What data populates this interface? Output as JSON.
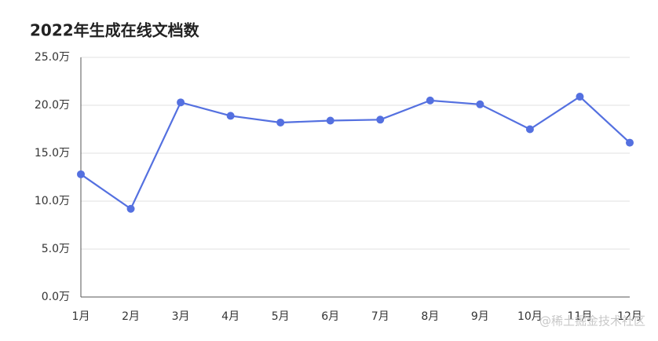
{
  "chart_data": {
    "type": "line",
    "title": "2022年生成在线文档数",
    "categories": [
      "1月",
      "2月",
      "3月",
      "4月",
      "5月",
      "6月",
      "7月",
      "8月",
      "9月",
      "10月",
      "11月",
      "12月"
    ],
    "series": [
      {
        "name": "文档数",
        "color": "#5470e0",
        "values": [
          12.8,
          9.2,
          20.3,
          18.9,
          18.2,
          18.4,
          18.5,
          20.5,
          20.1,
          17.5,
          20.9,
          16.1
        ]
      }
    ],
    "ylim": [
      0,
      25
    ],
    "yticks": [
      {
        "value": 0,
        "label": "0.0万"
      },
      {
        "value": 5,
        "label": "5.0万"
      },
      {
        "value": 10,
        "label": "10.0万"
      },
      {
        "value": 15,
        "label": "15.0万"
      },
      {
        "value": 20,
        "label": "20.0万"
      },
      {
        "value": 25,
        "label": "25.0万"
      }
    ],
    "grid": true
  },
  "watermark": "@稀土掘金技术社区"
}
